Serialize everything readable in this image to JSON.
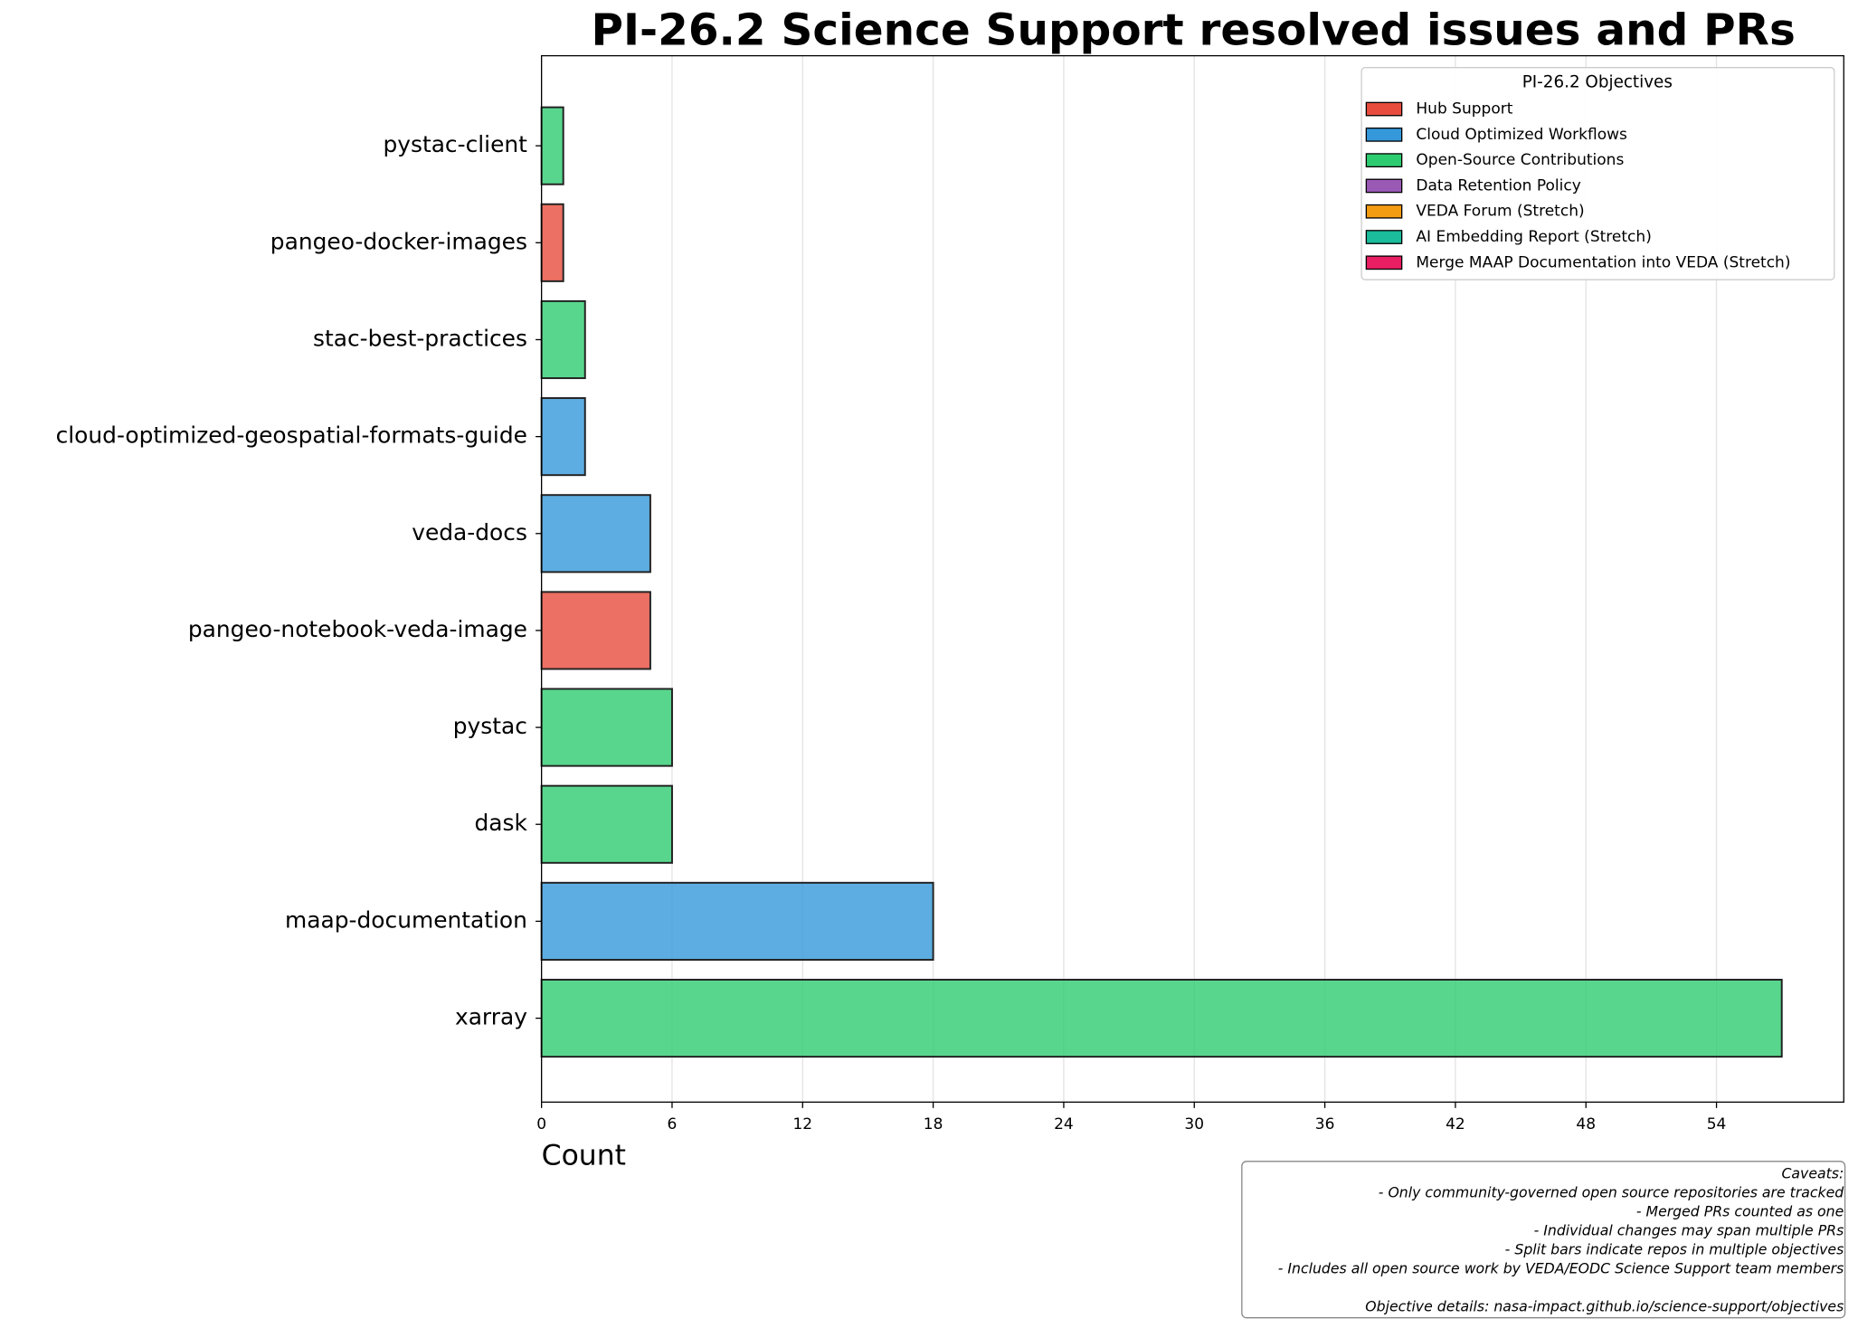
{
  "chart_data": {
    "type": "barh_stacked",
    "title": "PI-26.2 Science Support resolved issues and PRs",
    "xlabel": "Count",
    "categories": [
      "pystac-client",
      "pangeo-docker-images",
      "stac-best-practices",
      "cloud-optimized-geospatial-formats-guide",
      "veda-docs",
      "pangeo-notebook-veda-image",
      "pystac",
      "dask",
      "maap-documentation",
      "xarray"
    ],
    "legend_title": "PI-26.2 Objectives",
    "legend_position": "upper right",
    "series": [
      {
        "name": "Hub Support",
        "color": "#e74c3c",
        "values": [
          null,
          1,
          null,
          null,
          null,
          5,
          null,
          null,
          null,
          null
        ]
      },
      {
        "name": "Cloud Optimized Workflows",
        "color": "#3498db",
        "values": [
          null,
          null,
          null,
          2,
          5,
          null,
          null,
          null,
          18,
          null
        ]
      },
      {
        "name": "Open-Source Contributions",
        "color": "#2ecc71",
        "values": [
          1,
          null,
          2,
          null,
          null,
          null,
          6,
          6,
          null,
          57
        ]
      },
      {
        "name": "Data Retention Policy",
        "color": "#9b59b6",
        "values": [
          null,
          null,
          null,
          null,
          null,
          null,
          null,
          null,
          null,
          null
        ]
      },
      {
        "name": "VEDA Forum (Stretch)",
        "color": "#f39c12",
        "values": [
          null,
          null,
          null,
          null,
          null,
          null,
          null,
          null,
          null,
          null
        ]
      },
      {
        "name": "AI Embedding Report (Stretch)",
        "color": "#1abc9c",
        "values": [
          null,
          null,
          null,
          null,
          null,
          null,
          null,
          null,
          null,
          null
        ]
      },
      {
        "name": "Merge MAAP Documentation into VEDA (Stretch)",
        "color": "#e91e63",
        "values": [
          null,
          null,
          null,
          null,
          null,
          null,
          null,
          null,
          null,
          null
        ]
      }
    ],
    "xlim": [
      0,
      59.85
    ],
    "xticks": [
      0,
      6,
      12,
      18,
      24,
      30,
      36,
      42,
      48,
      54
    ],
    "grid": true,
    "caveats": [
      "Caveats:",
      "- Only community-governed open source repositories are tracked",
      "- Merged PRs counted as one",
      "- Individual changes may span multiple PRs",
      "- Split bars indicate repos in multiple objectives",
      "- Includes all open source work by VEDA/EODC Science Support team members",
      "Objective details: nasa-impact.github.io/science-support/objectives"
    ]
  }
}
